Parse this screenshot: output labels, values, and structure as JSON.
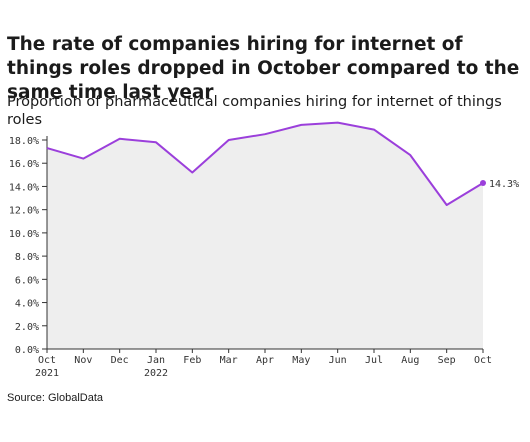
{
  "title": "The rate of companies hiring for internet of things roles dropped in October compared to the same time last year",
  "subtitle": "Proportion of pharmaceutical companies hiring for internet of things roles",
  "source": "Source: GlobalData",
  "colors": {
    "line": "#9b3fdb",
    "area": "#eeeeee",
    "axis": "#333333"
  },
  "chart_data": {
    "type": "area",
    "x": [
      "Oct 2021",
      "Nov",
      "Dec",
      "Jan 2022",
      "Feb",
      "Mar",
      "Apr",
      "May",
      "Jun",
      "Jul",
      "Aug",
      "Sep",
      "Oct"
    ],
    "x_tick_labels": [
      [
        "Oct",
        "2021"
      ],
      [
        "Nov",
        ""
      ],
      [
        "Dec",
        ""
      ],
      [
        "Jan",
        "2022"
      ],
      [
        "Feb",
        ""
      ],
      [
        "Mar",
        ""
      ],
      [
        "Apr",
        ""
      ],
      [
        "May",
        ""
      ],
      [
        "Jun",
        ""
      ],
      [
        "Jul",
        ""
      ],
      [
        "Aug",
        ""
      ],
      [
        "Sep",
        ""
      ],
      [
        "Oct",
        ""
      ]
    ],
    "values": [
      17.3,
      16.4,
      18.1,
      17.8,
      15.2,
      18.0,
      18.5,
      19.3,
      19.5,
      18.9,
      16.7,
      12.4,
      14.3
    ],
    "ylim": [
      0,
      18
    ],
    "y_ticks": [
      0,
      2,
      4,
      6,
      8,
      10,
      12,
      14,
      16,
      18
    ],
    "y_tick_labels": [
      "0.0%",
      "2.0%",
      "4.0%",
      "6.0%",
      "8.0%",
      "10.0%",
      "12.0%",
      "14.0%",
      "16.0%",
      "18.0%"
    ],
    "end_label": "14.3%",
    "grid": false,
    "legend": "none"
  }
}
